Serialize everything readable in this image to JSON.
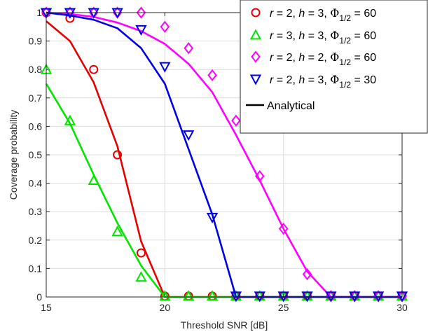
{
  "chart_data": {
    "type": "line",
    "xlabel": "Threshold SNR [dB]",
    "ylabel": "Coverage probability",
    "xlim": [
      15,
      30
    ],
    "ylim": [
      0,
      1
    ],
    "xticks": [
      15,
      20,
      25,
      30
    ],
    "yticks": [
      0,
      0.1,
      0.2,
      0.3,
      0.4,
      0.5,
      0.6,
      0.7,
      0.8,
      0.9,
      1
    ],
    "grid": true,
    "legend_position": "top-right",
    "series": [
      {
        "name": "r = 2,  h = 3,  Φ1/2 = 60",
        "label_parts": {
          "r": "2",
          "h": "3",
          "phi": "60"
        },
        "color": "#e60000",
        "marker": "circle",
        "analytical": {
          "x": [
            15,
            16,
            17,
            18,
            19,
            20,
            21,
            22,
            23,
            24,
            25,
            26,
            27,
            28,
            29,
            30
          ],
          "y": [
            0.97,
            0.9,
            0.755,
            0.53,
            0.195,
            0.0,
            0.0,
            0.0,
            0.0,
            0.0,
            0.0,
            0.0,
            0.0,
            0.0,
            0.0,
            0.0
          ]
        },
        "simulation": {
          "x": [
            15,
            16,
            17,
            18,
            19,
            20,
            21,
            22,
            23,
            24,
            25,
            26,
            27,
            28,
            29,
            30
          ],
          "y": [
            1.0,
            0.98,
            0.8,
            0.5,
            0.155,
            0.003,
            0.003,
            0.003,
            0.003,
            0.003,
            0.003,
            0.003,
            0.003,
            0.003,
            0.003,
            0.003
          ]
        }
      },
      {
        "name": "r = 3,  h = 3,  Φ1/2 = 60",
        "label_parts": {
          "r": "3",
          "h": "3",
          "phi": "60"
        },
        "color": "#00e600",
        "marker": "triangle-up",
        "analytical": {
          "x": [
            15,
            16,
            17,
            18,
            19,
            20,
            21,
            22,
            23,
            24,
            25,
            26,
            27,
            28,
            29,
            30
          ],
          "y": [
            0.75,
            0.61,
            0.43,
            0.26,
            0.11,
            0.0,
            0.0,
            0.0,
            0.0,
            0.0,
            0.0,
            0.0,
            0.0,
            0.0,
            0.0,
            0.0
          ]
        },
        "simulation": {
          "x": [
            15,
            16,
            17,
            18,
            19,
            20,
            21,
            22,
            23,
            24,
            25,
            26,
            27,
            28,
            29,
            30
          ],
          "y": [
            0.8,
            0.62,
            0.41,
            0.23,
            0.07,
            0.003,
            0.003,
            0.003,
            0.003,
            0.003,
            0.003,
            0.003,
            0.003,
            0.003,
            0.003,
            0.003
          ]
        }
      },
      {
        "name": "r = 2,  h = 2,  Φ1/2 = 60",
        "label_parts": {
          "r": "2",
          "h": "2",
          "phi": "60"
        },
        "color": "#ff00ff",
        "marker": "diamond",
        "analytical": {
          "x": [
            15,
            16,
            17,
            18,
            19,
            20,
            21,
            22,
            23,
            24,
            25,
            26,
            27,
            28,
            29,
            30
          ],
          "y": [
            1.0,
            0.995,
            0.985,
            0.965,
            0.935,
            0.89,
            0.82,
            0.72,
            0.57,
            0.41,
            0.24,
            0.09,
            0.0,
            0.0,
            0.0,
            0.0
          ]
        },
        "simulation": {
          "x": [
            15,
            16,
            17,
            18,
            19,
            20,
            21,
            22,
            23,
            24,
            25,
            26,
            27,
            28,
            29,
            30
          ],
          "y": [
            1.0,
            1.0,
            1.0,
            1.0,
            1.0,
            0.95,
            0.875,
            0.78,
            0.62,
            0.425,
            0.24,
            0.08,
            0.003,
            0.003,
            0.003,
            0.003
          ]
        }
      },
      {
        "name": "r = 2,  h = 3,  Φ1/2 = 30",
        "label_parts": {
          "r": "2",
          "h": "3",
          "phi": "30"
        },
        "color": "#0000e6",
        "marker": "triangle-down",
        "analytical": {
          "x": [
            15,
            16,
            17,
            18,
            19,
            20,
            21,
            22,
            23,
            24,
            25,
            26,
            27,
            28,
            29,
            30
          ],
          "y": [
            1.0,
            0.99,
            0.975,
            0.945,
            0.875,
            0.75,
            0.52,
            0.29,
            0.0,
            0.0,
            0.0,
            0.0,
            0.0,
            0.0,
            0.0,
            0.0
          ]
        },
        "simulation": {
          "x": [
            15,
            16,
            17,
            18,
            19,
            20,
            21,
            22,
            23,
            24,
            25,
            26,
            27,
            28,
            29,
            30
          ],
          "y": [
            1.0,
            1.0,
            1.0,
            1.0,
            0.94,
            0.81,
            0.57,
            0.28,
            0.003,
            0.003,
            0.003,
            0.003,
            0.003,
            0.003,
            0.003,
            0.003
          ]
        }
      }
    ],
    "legend_analytical": "Analytical"
  }
}
